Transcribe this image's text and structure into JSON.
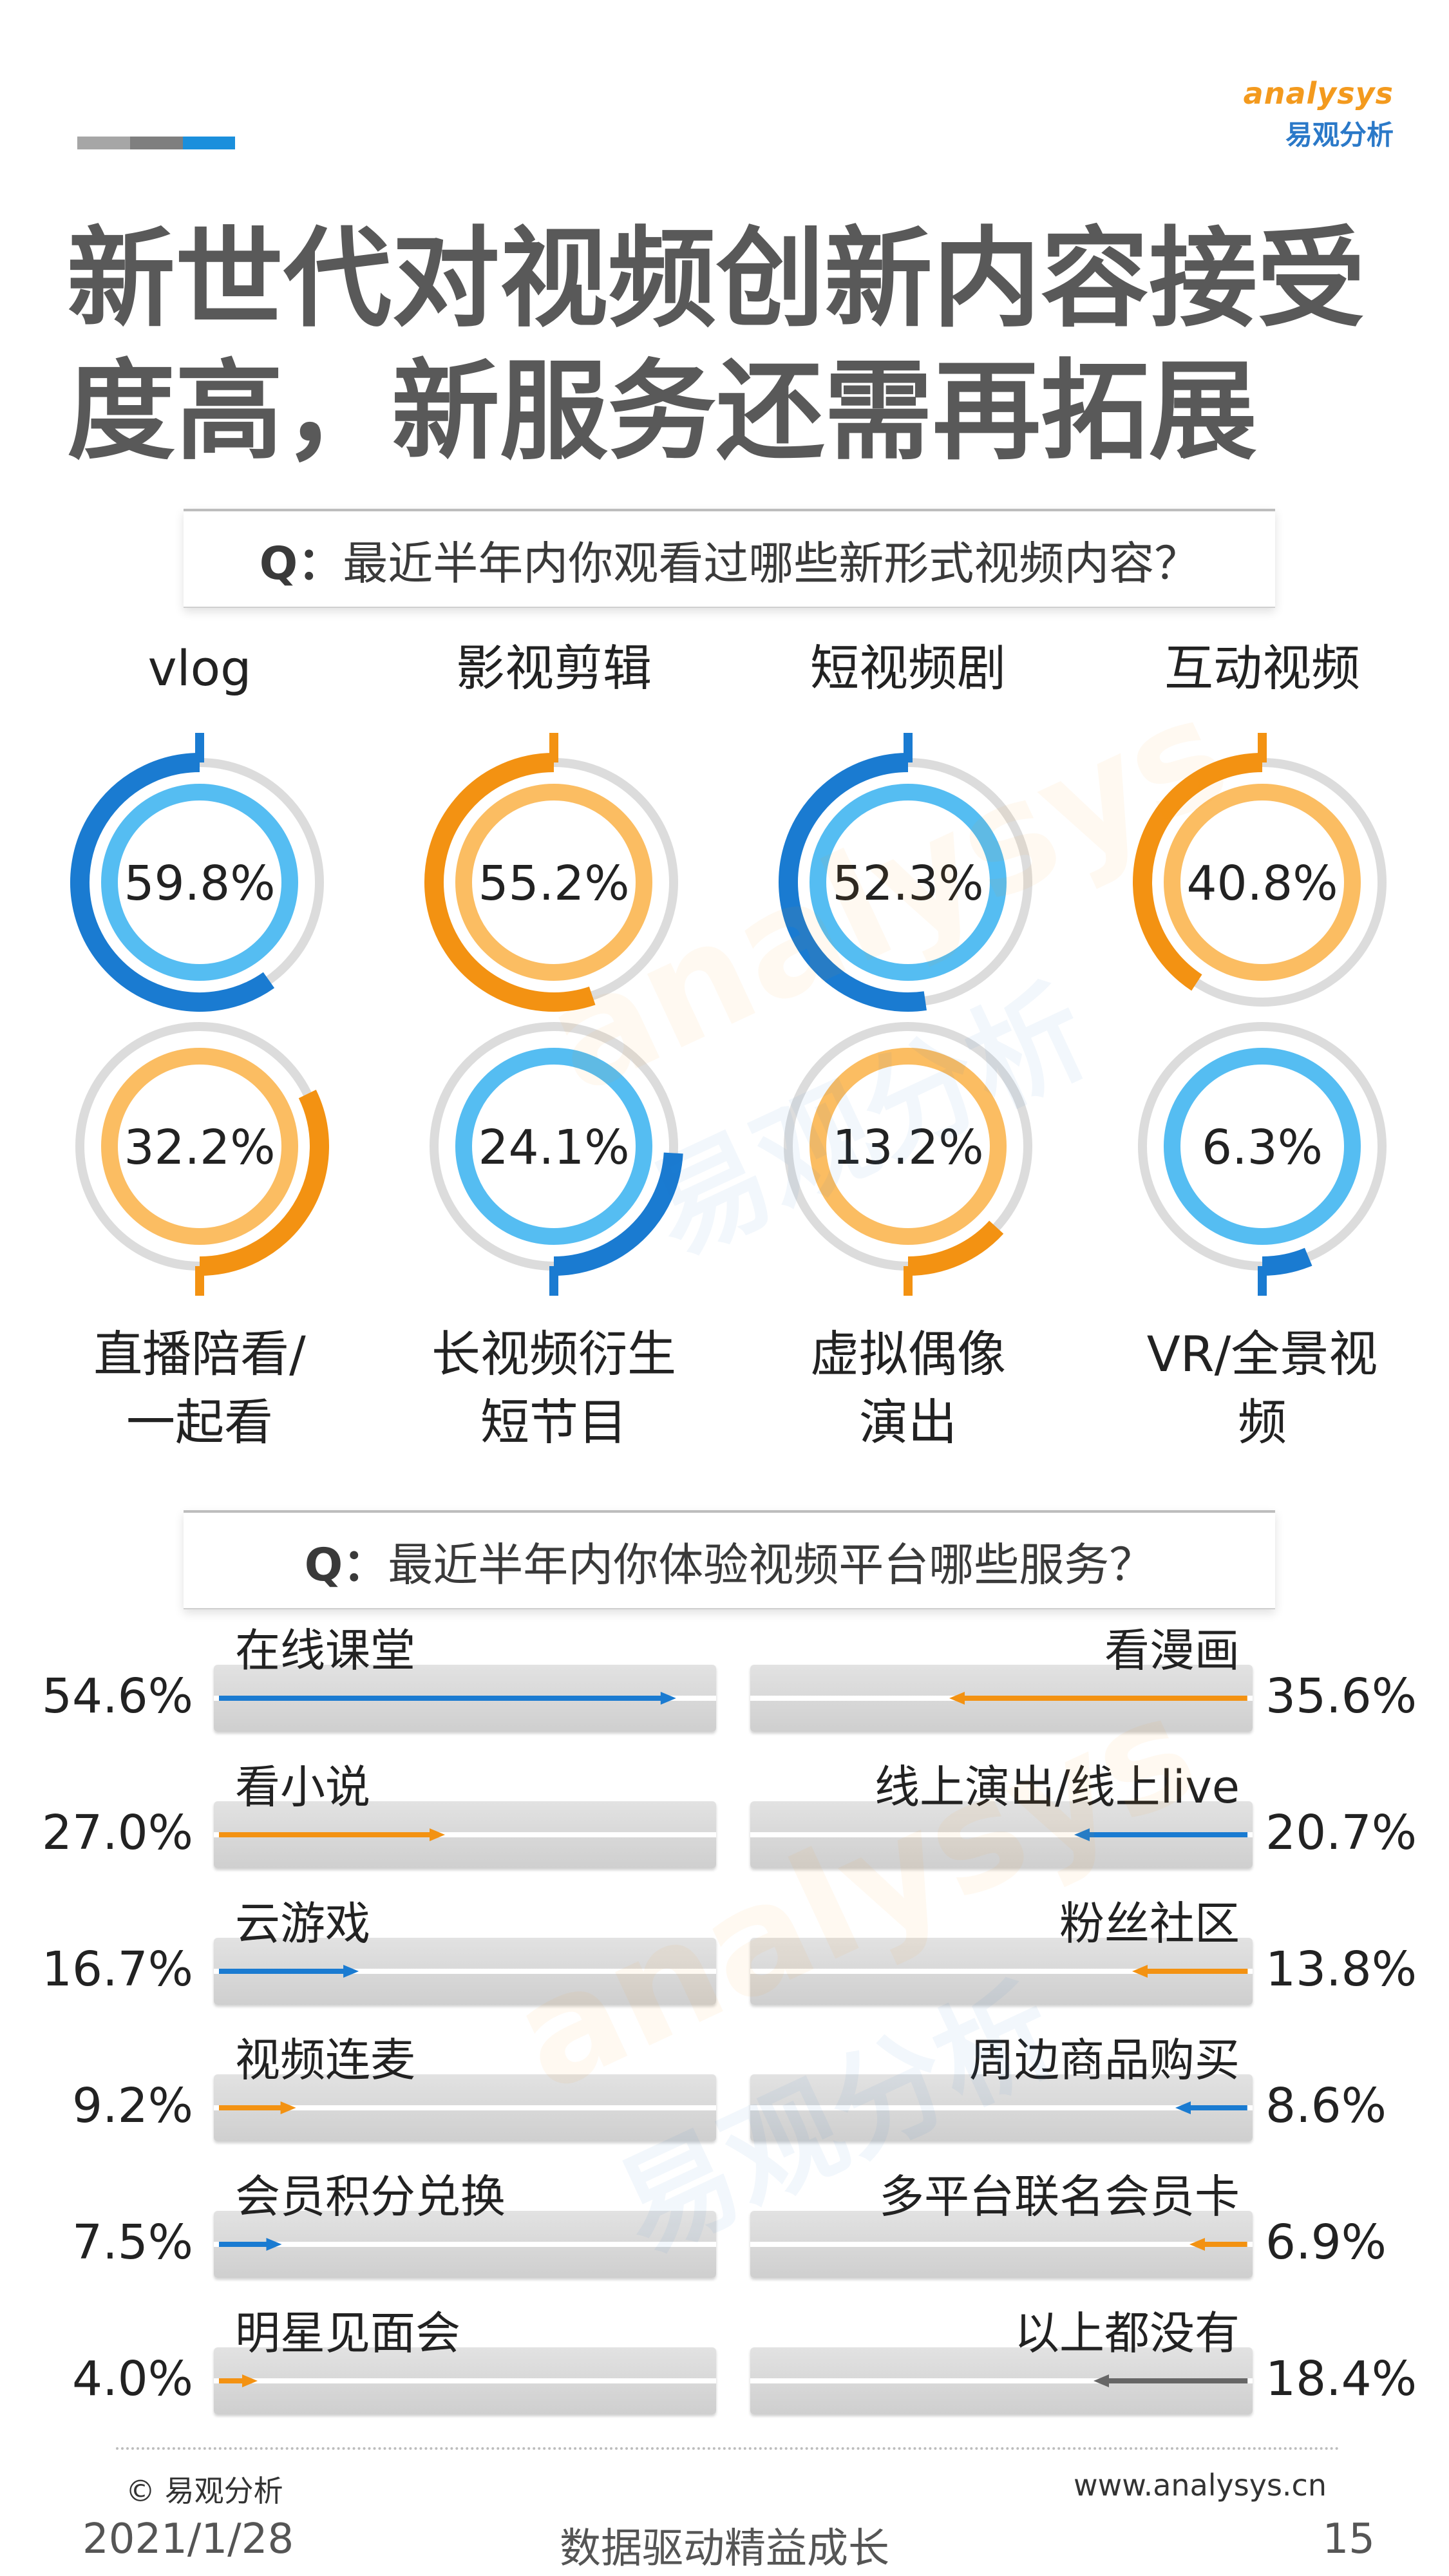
{
  "logo": {
    "en": "analysys",
    "cn": "易观分析"
  },
  "colors": {
    "blue_dark": "#1a7bd1",
    "blue_light": "#55bdf2",
    "orange_dark": "#f39212",
    "orange_light": "#fbbd62",
    "ring_gray": "#dcdcdc",
    "gray_arrow": "#666666",
    "bar_track": "#d9d9d9",
    "deco_gray1": "#a6a6a6",
    "deco_gray2": "#7f7f7f",
    "deco_blue": "#1b8fdc"
  },
  "title": {
    "line1": "新世代对视频创新内容接受",
    "line2": "度高，新服务还需再拓展"
  },
  "q1": {
    "prefix": "Q：",
    "text": "最近半年内你观看过哪些新形式视频内容？"
  },
  "q2": {
    "prefix": "Q：",
    "text": "最近半年内你体验视频平台哪些服务？"
  },
  "chart_data": [
    {
      "type": "donut",
      "question": "Q：最近半年内你观看过哪些新形式视频内容？",
      "unit": "%",
      "items": [
        {
          "label": "vlog",
          "value": 59.8,
          "display": "59.8%",
          "color": "blue"
        },
        {
          "label": "影视剪辑",
          "value": 55.2,
          "display": "55.2%",
          "color": "orange"
        },
        {
          "label": "短视频剧",
          "value": 52.3,
          "display": "52.3%",
          "color": "blue"
        },
        {
          "label": "互动视频",
          "value": 40.8,
          "display": "40.8%",
          "color": "orange"
        },
        {
          "label": "直播陪看/一起看",
          "line1": "直播陪看/",
          "line2": "一起看",
          "value": 32.2,
          "display": "32.2%",
          "color": "orange"
        },
        {
          "label": "长视频衍生短节目",
          "line1": "长视频衍生",
          "line2": "短节目",
          "value": 24.1,
          "display": "24.1%",
          "color": "blue"
        },
        {
          "label": "虚拟偶像演出",
          "line1": "虚拟偶像",
          "line2": "演出",
          "value": 13.2,
          "display": "13.2%",
          "color": "orange"
        },
        {
          "label": "VR/全景视频",
          "line1": "VR/全景视",
          "line2": "频",
          "value": 6.3,
          "display": "6.3%",
          "color": "blue"
        }
      ]
    },
    {
      "type": "bar",
      "question": "Q：最近半年内你体验视频平台哪些服务？",
      "unit": "%",
      "xlim": [
        0,
        60
      ],
      "left": [
        {
          "label": "在线课堂",
          "value": 54.6,
          "display": "54.6%",
          "color": "blue"
        },
        {
          "label": "看小说",
          "value": 27.0,
          "display": "27.0%",
          "color": "orange"
        },
        {
          "label": "云游戏",
          "value": 16.7,
          "display": "16.7%",
          "color": "blue"
        },
        {
          "label": "视频连麦",
          "value": 9.2,
          "display": "9.2%",
          "color": "orange"
        },
        {
          "label": "会员积分兑换",
          "value": 7.5,
          "display": "7.5%",
          "color": "blue"
        },
        {
          "label": "明星见面会",
          "value": 4.0,
          "display": "4.0%",
          "color": "orange"
        }
      ],
      "right": [
        {
          "label": "看漫画",
          "value": 35.6,
          "display": "35.6%",
          "color": "orange"
        },
        {
          "label": "线上演出/线上live",
          "value": 20.7,
          "display": "20.7%",
          "color": "blue"
        },
        {
          "label": "粉丝社区",
          "value": 13.8,
          "display": "13.8%",
          "color": "orange"
        },
        {
          "label": "周边商品购买",
          "value": 8.6,
          "display": "8.6%",
          "color": "blue"
        },
        {
          "label": "多平台联名会员卡",
          "value": 6.9,
          "display": "6.9%",
          "color": "orange"
        },
        {
          "label": "以上都没有",
          "value": 18.4,
          "display": "18.4%",
          "color": "gray"
        }
      ]
    }
  ],
  "footer": {
    "copyright": "© 易观分析",
    "site": "www.analysys.cn",
    "date": "2021/1/28",
    "slogan": "数据驱动精益成长",
    "page": "15"
  }
}
